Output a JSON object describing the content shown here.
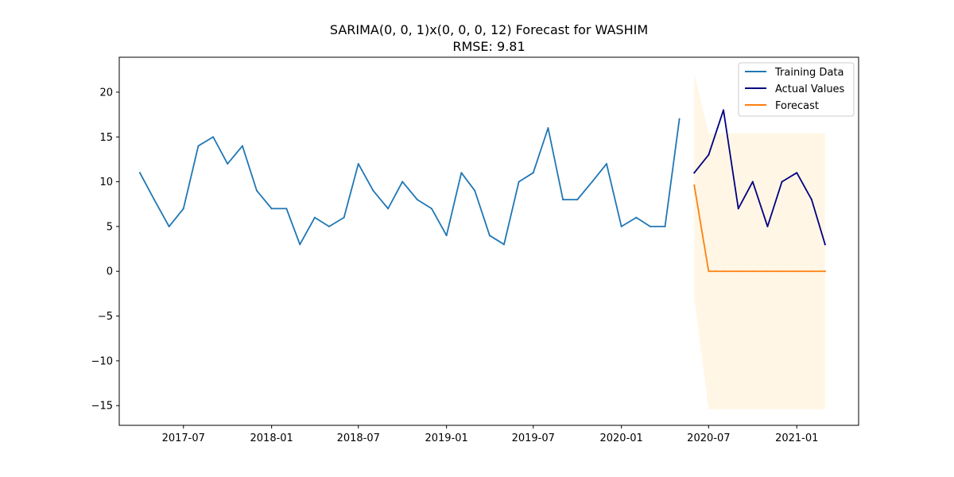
{
  "chart_data": {
    "type": "line",
    "title": "SARIMA(0, 0, 1)x(0, 0, 0, 12) Forecast for WASHIM",
    "subtitle": "RMSE: 9.81",
    "xlabel": "",
    "ylabel": "",
    "x_tick_labels": [
      "2017-07",
      "2018-01",
      "2018-07",
      "2019-01",
      "2019-07",
      "2020-01",
      "2020-07",
      "2021-01"
    ],
    "y_ticks": [
      -15,
      -10,
      -5,
      0,
      5,
      10,
      15,
      20
    ],
    "y_tick_labels": [
      "−15",
      "−10",
      "−5",
      "0",
      "5",
      "10",
      "15",
      "20"
    ],
    "xlim": [
      "2017-02-17",
      "2021-05-10"
    ],
    "ylim": [
      -17.2,
      23.9
    ],
    "grid": false,
    "legend_position": "top-right",
    "series": [
      {
        "name": "Training Data",
        "color": "#1f77b4",
        "x": [
          "2017-04",
          "2017-05",
          "2017-06",
          "2017-07",
          "2017-08",
          "2017-09",
          "2017-10",
          "2017-11",
          "2017-12",
          "2018-01",
          "2018-02",
          "2018-03",
          "2018-04",
          "2018-05",
          "2018-06",
          "2018-07",
          "2018-08",
          "2018-09",
          "2018-10",
          "2018-11",
          "2018-12",
          "2019-01",
          "2019-02",
          "2019-03",
          "2019-04",
          "2019-05",
          "2019-06",
          "2019-07",
          "2019-08",
          "2019-09",
          "2019-10",
          "2019-11",
          "2019-12",
          "2020-01",
          "2020-02",
          "2020-03",
          "2020-04",
          "2020-05"
        ],
        "values": [
          11,
          8,
          5,
          7,
          14,
          15,
          12,
          14,
          9,
          7,
          7,
          3,
          6,
          5,
          6,
          12,
          9,
          7,
          10,
          8,
          7,
          4,
          11,
          9,
          4,
          3,
          10,
          11,
          16,
          8,
          8,
          10,
          12,
          5,
          6,
          5,
          5,
          17
        ]
      },
      {
        "name": "Actual Values",
        "color": "#000080",
        "x": [
          "2020-06",
          "2020-07",
          "2020-08",
          "2020-09",
          "2020-10",
          "2020-11",
          "2020-12",
          "2021-01",
          "2021-02",
          "2021-03"
        ],
        "values": [
          11,
          13,
          18,
          7,
          10,
          5,
          10,
          11,
          8,
          3
        ]
      },
      {
        "name": "Forecast",
        "color": "#ff7f0e",
        "x": [
          "2020-06",
          "2020-07",
          "2020-08",
          "2020-09",
          "2020-10",
          "2020-11",
          "2020-12",
          "2021-01",
          "2021-02",
          "2021-03"
        ],
        "values": [
          9.6,
          0,
          0,
          0,
          0,
          0,
          0,
          0,
          0,
          0
        ]
      }
    ],
    "confidence_interval": {
      "color": "#ffa500",
      "x": [
        "2020-06",
        "2020-07",
        "2020-08",
        "2020-09",
        "2020-10",
        "2020-11",
        "2020-12",
        "2021-01",
        "2021-02",
        "2021-03"
      ],
      "lower": [
        -3,
        -15.4,
        -15.4,
        -15.4,
        -15.4,
        -15.4,
        -15.4,
        -15.4,
        -15.4,
        -15.4
      ],
      "upper": [
        22.1,
        15.4,
        15.4,
        15.4,
        15.4,
        15.4,
        15.4,
        15.4,
        15.4,
        15.4
      ]
    }
  }
}
